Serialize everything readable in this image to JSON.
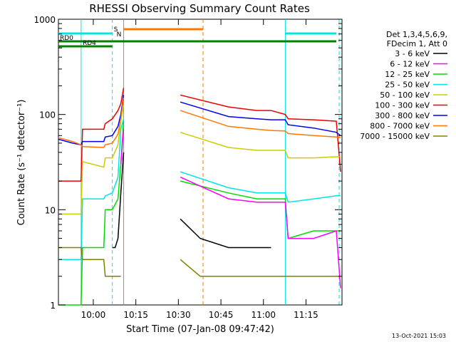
{
  "chart_data": {
    "type": "line",
    "title": "RHESSI Observing Summary Count Rates",
    "xlabel": "Start Time (07-Jan-08 09:47:42)",
    "ylabel": "Count Rate (s⁻¹ detector⁻¹)",
    "x_units": "minutes after 09:47:42",
    "xlim": [
      0,
      100
    ],
    "ylim": [
      1,
      1000
    ],
    "yscale": "log",
    "x_ticks": [
      {
        "label": "10:00",
        "value": 12.3
      },
      {
        "label": "10:15",
        "value": 27.3
      },
      {
        "label": "10:30",
        "value": 42.3
      },
      {
        "label": "10:45",
        "value": 57.3
      },
      {
        "label": "11:00",
        "value": 72.3
      },
      {
        "label": "11:15",
        "value": 87.3
      }
    ],
    "y_ticks": [
      {
        "label": "1",
        "value": 1
      },
      {
        "label": "10",
        "value": 10
      },
      {
        "label": "100",
        "value": 100
      },
      {
        "label": "1000",
        "value": 1000
      }
    ],
    "legend": {
      "position": "right",
      "header": [
        "Det 1,3,4,5,6,9,",
        "FDecim 1, Att 0"
      ],
      "entries": [
        {
          "label": "3 - 6 keV",
          "color": "#000000"
        },
        {
          "label": "6 - 12 keV",
          "color": "#ff00ff"
        },
        {
          "label": "12 - 25 keV",
          "color": "#00dd00"
        },
        {
          "label": "25 - 50 keV",
          "color": "#00e5e5"
        },
        {
          "label": "50 - 100 keV",
          "color": "#cccc00"
        },
        {
          "label": "100 - 300 keV",
          "color": "#ee0000"
        },
        {
          "label": "300 - 800 keV",
          "color": "#0000ee"
        },
        {
          "label": "800 - 7000 keV",
          "color": "#ff7700"
        },
        {
          "label": "7000 - 15000 keV",
          "color": "#808000"
        }
      ]
    },
    "series": [
      {
        "name": "100 - 300 keV",
        "color": "#ee0000",
        "x": [
          0,
          8,
          8.5,
          16,
          16.5,
          19,
          21,
          22,
          23,
          42,
          43,
          60,
          70,
          75,
          80,
          81,
          90,
          98,
          99.5
        ],
        "y": [
          20,
          20,
          70,
          70,
          80,
          90,
          110,
          130,
          190,
          null,
          160,
          120,
          110,
          110,
          100,
          90,
          88,
          85,
          25
        ]
      },
      {
        "name": "300 - 800 keV",
        "color": "#0000ee",
        "x": [
          0,
          5,
          8,
          8.5,
          16,
          16.5,
          19,
          21,
          22,
          23,
          42,
          43,
          60,
          70,
          75,
          80,
          81,
          90,
          98,
          99.5
        ],
        "y": [
          55,
          50,
          48,
          52,
          52,
          58,
          60,
          75,
          100,
          160,
          null,
          135,
          95,
          90,
          88,
          88,
          78,
          72,
          65,
          60
        ]
      },
      {
        "name": "800 - 7000 keV",
        "color": "#ff7700",
        "x": [
          0,
          5,
          8,
          8.5,
          16,
          16.5,
          19,
          21,
          22,
          23,
          42,
          43,
          60,
          70,
          75,
          80,
          81,
          90,
          98,
          99.5
        ],
        "y": [
          57,
          52,
          48,
          46,
          45,
          48,
          50,
          62,
          90,
          150,
          null,
          110,
          75,
          70,
          68,
          67,
          63,
          60,
          58,
          57
        ]
      },
      {
        "name": "50 - 100 keV",
        "color": "#cccc00",
        "x": [
          0,
          8,
          8.5,
          16,
          16.5,
          19,
          21,
          22,
          23,
          42,
          43,
          60,
          70,
          75,
          80,
          81,
          90,
          98,
          99.5
        ],
        "y": [
          9,
          9,
          32,
          28,
          35,
          35,
          48,
          85,
          125,
          null,
          65,
          45,
          42,
          42,
          42,
          35,
          35,
          36,
          36
        ]
      },
      {
        "name": "25 - 50 keV",
        "color": "#00e5e5",
        "x": [
          0,
          8,
          8.5,
          16,
          16.5,
          19,
          21,
          22,
          23,
          42,
          43,
          60,
          70,
          75,
          80,
          81,
          90,
          98,
          99.5
        ],
        "y": [
          3,
          3,
          13,
          13,
          14,
          15,
          22,
          70,
          90,
          null,
          25,
          17,
          15,
          15,
          15,
          12,
          13,
          14,
          14
        ]
      },
      {
        "name": "12 - 25 keV",
        "color": "#00dd00",
        "x": [
          0,
          8,
          8.5,
          16,
          16.5,
          19,
          21,
          22,
          23,
          42,
          43,
          60,
          70,
          75,
          80,
          81,
          90,
          98,
          99.5
        ],
        "y": [
          1,
          1,
          4,
          4,
          10,
          10,
          13,
          30,
          85,
          null,
          20,
          15,
          13,
          13,
          13,
          5,
          6,
          6,
          6
        ]
      },
      {
        "name": "6 - 12 keV",
        "color": "#ff00ff",
        "x": [
          0,
          8,
          16,
          19,
          21,
          22,
          23,
          42,
          43,
          60,
          70,
          75,
          80,
          81,
          90,
          98,
          99.5
        ],
        "y": [
          null,
          null,
          null,
          null,
          null,
          30,
          70,
          null,
          22,
          13,
          12,
          12,
          12,
          5,
          5,
          6,
          1.5
        ]
      },
      {
        "name": "3 - 6 keV",
        "color": "#000000",
        "x": [
          0,
          16,
          19,
          20,
          21,
          22,
          23,
          42,
          43,
          50,
          60,
          70,
          75,
          80,
          99.5
        ],
        "y": [
          null,
          null,
          4,
          4,
          5,
          15,
          40,
          null,
          8,
          5,
          4,
          4,
          4,
          null,
          null
        ]
      },
      {
        "name": "7000 - 15000 keV",
        "color": "#808000",
        "x": [
          0,
          8,
          8.5,
          16,
          16.5,
          19,
          21,
          22,
          23,
          42,
          43,
          50,
          60,
          70,
          80,
          98,
          99.5
        ],
        "y": [
          4,
          4,
          3,
          3,
          2,
          2,
          2,
          2,
          null,
          null,
          3,
          2,
          2,
          2,
          2,
          2,
          2
        ]
      }
    ],
    "vertical_lines": [
      {
        "x": 8,
        "color": "#00e5e5",
        "style": "solid"
      },
      {
        "x": 19,
        "color": "#00e5e5",
        "style": "dashed"
      },
      {
        "x": 23,
        "color": "#ff7700",
        "style": "solid"
      },
      {
        "x": 51,
        "color": "#ff7700",
        "style": "dashed"
      },
      {
        "x": 80,
        "color": "#00e5e5",
        "style": "solid"
      },
      {
        "x": 99,
        "color": "#00e5e5",
        "style": "dashed"
      }
    ],
    "status_bars": [
      {
        "label": "",
        "color": "#00e5e5",
        "x": [
          0,
          19
        ]
      },
      {
        "label": "",
        "color": "#00e5e5",
        "x": [
          80,
          98
        ]
      },
      {
        "label": "",
        "color": "#ff7700",
        "x": [
          23,
          51
        ]
      },
      {
        "label": "RD0",
        "color": "#008000",
        "x": [
          0,
          98
        ]
      },
      {
        "label": "RD4",
        "color": "#008000",
        "x": [
          0,
          19
        ]
      }
    ],
    "flags": [
      {
        "label": "S",
        "color": "#ff7700",
        "x": 19
      },
      {
        "label": "N",
        "color": "#00e5e5",
        "x": 20
      }
    ],
    "footer": "13-Oct-2021 15:03"
  }
}
